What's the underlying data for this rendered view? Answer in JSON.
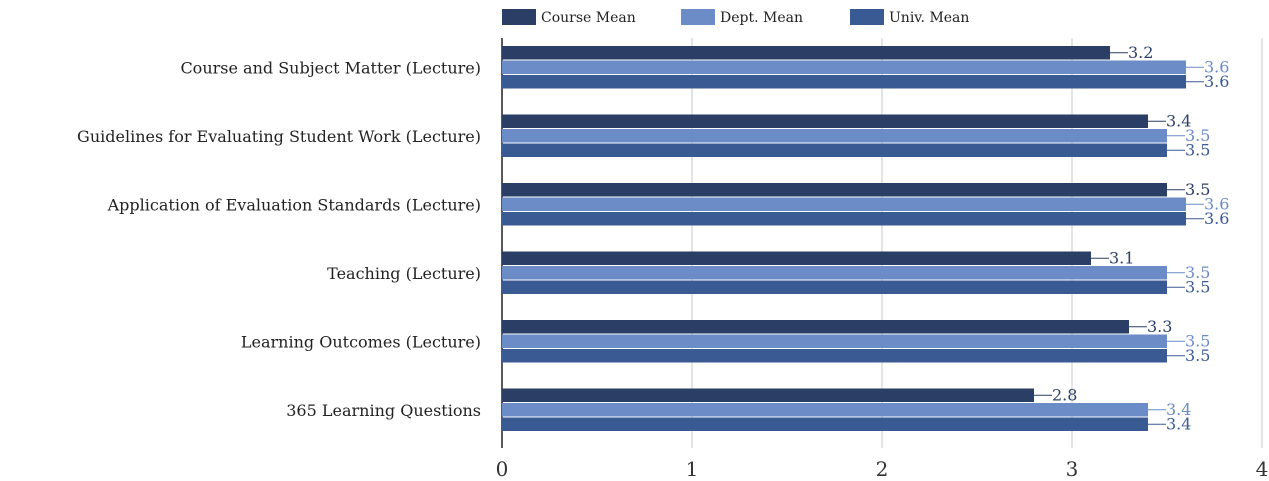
{
  "chart_data": {
    "type": "bar",
    "orientation": "horizontal",
    "categories": [
      "Course and Subject Matter (Lecture)",
      "Guidelines for Evaluating Student Work (Lecture)",
      "Application of Evaluation Standards (Lecture)",
      "Teaching (Lecture)",
      "Learning Outcomes (Lecture)",
      "365 Learning Questions"
    ],
    "series": [
      {
        "name": "Course Mean",
        "color": "#2b3f66",
        "values": [
          3.2,
          3.4,
          3.5,
          3.1,
          3.3,
          2.8
        ]
      },
      {
        "name": "Dept. Mean",
        "color": "#6b8cc7",
        "values": [
          3.6,
          3.5,
          3.6,
          3.5,
          3.5,
          3.4
        ]
      },
      {
        "name": "Univ. Mean",
        "color": "#3a5a94",
        "values": [
          3.6,
          3.5,
          3.6,
          3.5,
          3.5,
          3.4
        ]
      }
    ],
    "data_labels": [
      [
        "3.2",
        "3.4",
        "3.5",
        "3.1",
        "3.3",
        "2.8"
      ],
      [
        "3.6",
        "3.5",
        "3.6",
        "3.5",
        "3.5",
        "3.4"
      ],
      [
        "3.6",
        "3.5",
        "3.6",
        "3.5",
        "3.5",
        "3.4"
      ]
    ],
    "xlim": [
      0,
      4
    ],
    "xticks": [
      0,
      1,
      2,
      3,
      4
    ],
    "xtick_labels": [
      "0",
      "1",
      "2",
      "3",
      "4"
    ],
    "grid": "vertical",
    "legend": "top"
  }
}
